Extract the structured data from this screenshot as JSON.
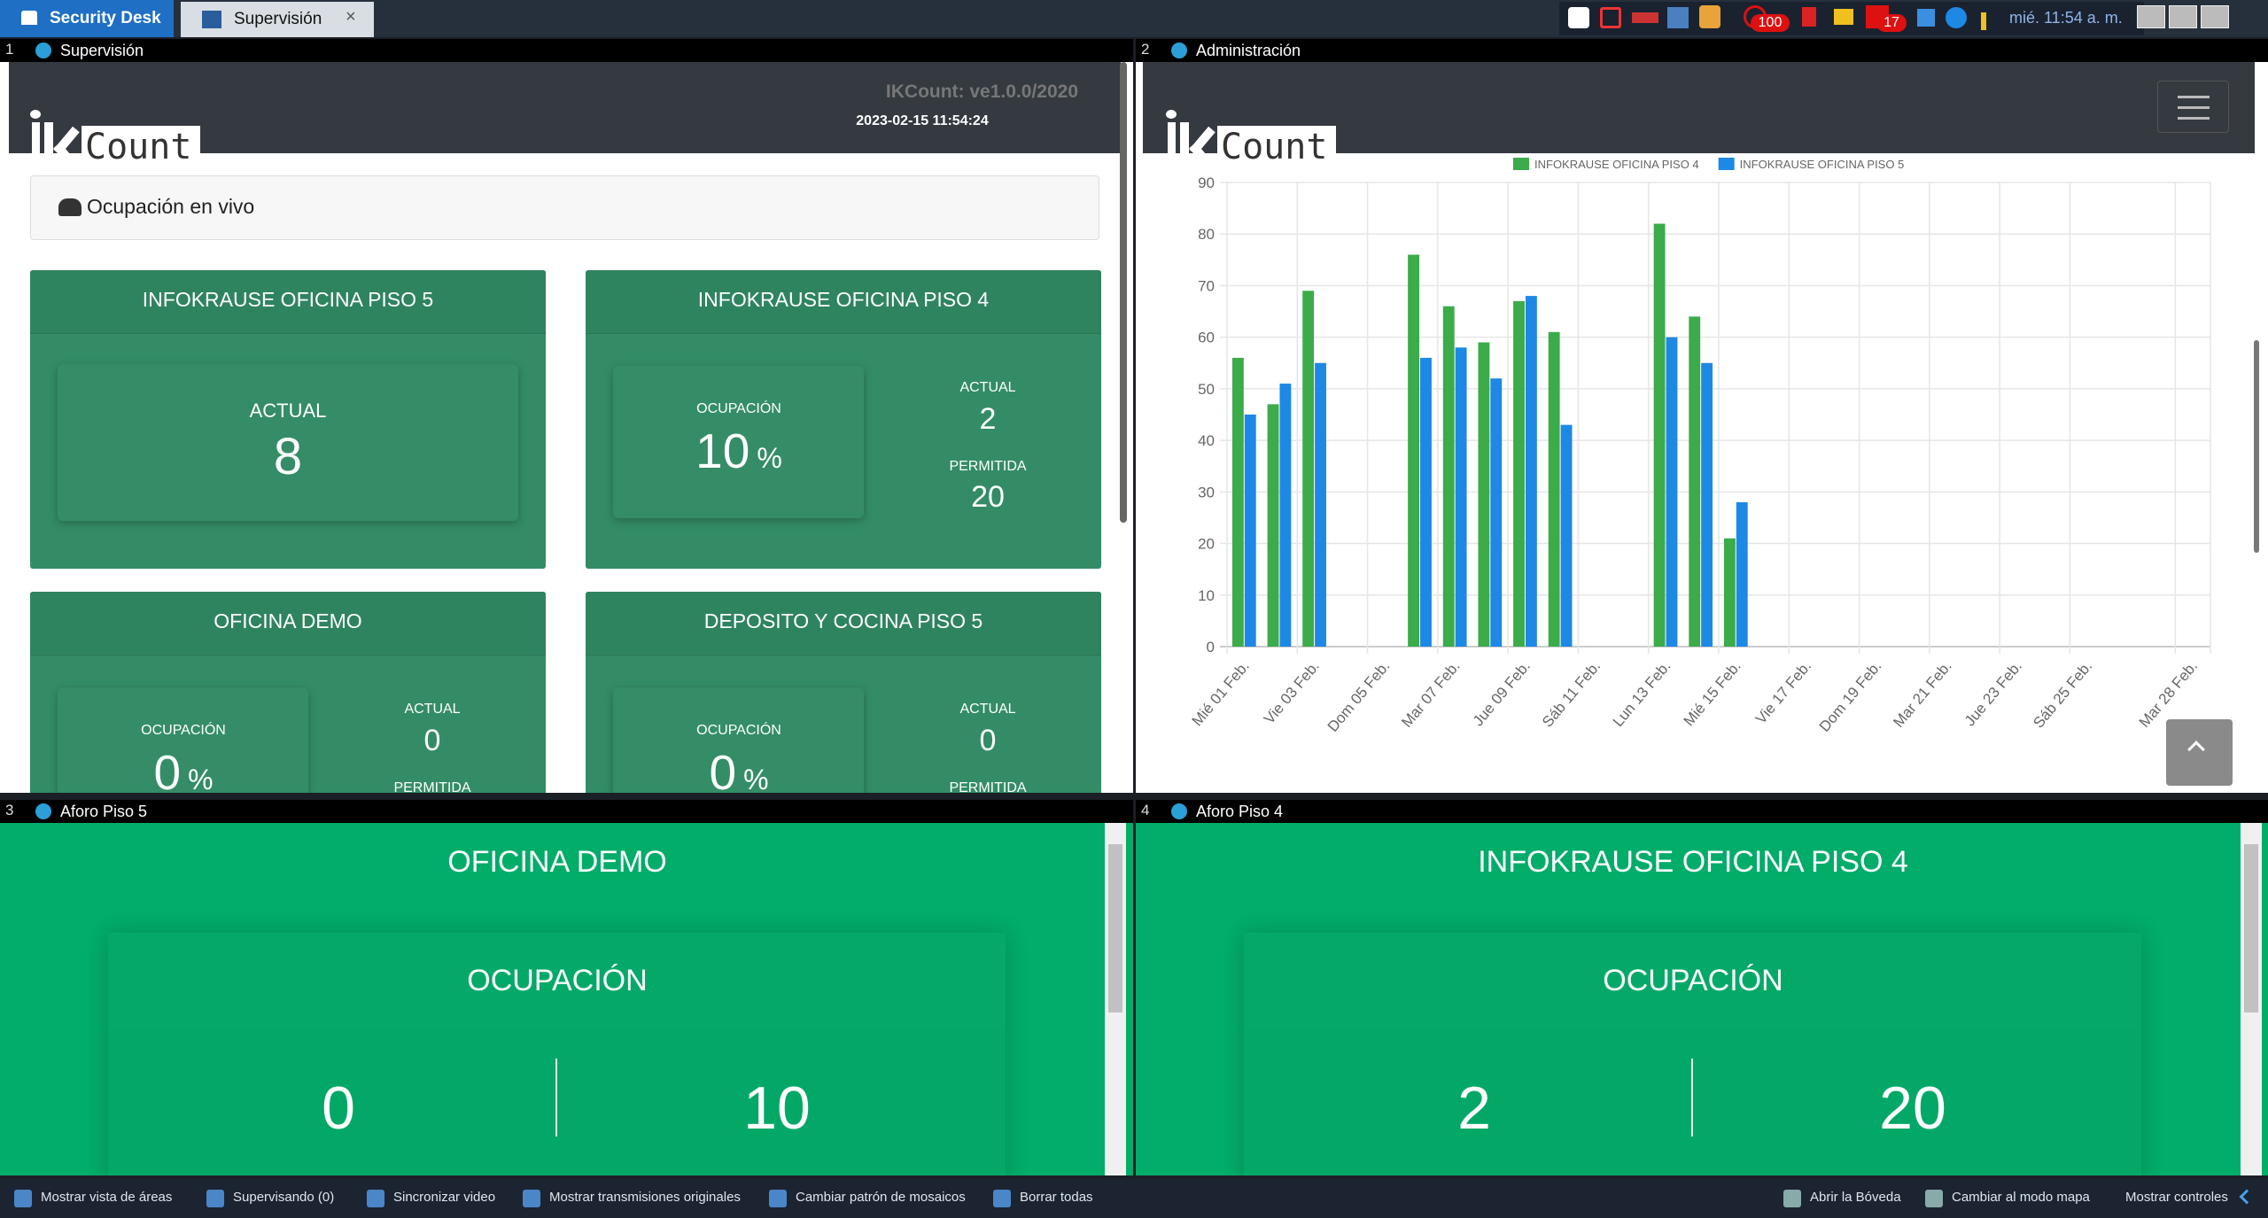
{
  "taskbar": {
    "app_tab": "Security Desk",
    "tab": "Supervisión",
    "badges": [
      "100",
      "17"
    ],
    "clock": "mié. 11:54 a. m."
  },
  "tiles": [
    {
      "number": "1",
      "title": "Supervisión"
    },
    {
      "number": "2",
      "title": "Administración"
    },
    {
      "number": "3",
      "title": "Aforo Piso 5"
    },
    {
      "number": "4",
      "title": "Aforo Piso 4"
    }
  ],
  "supervision": {
    "logo": "Count",
    "version": "IKCount: ve1.0.0/2020",
    "datetime": "2023-02-15 11:54:24",
    "section": "Ocupación en vivo",
    "cards": [
      {
        "name": "INFOKRAUSE OFICINA PISO 5",
        "actual_label": "ACTUAL",
        "actual": "8"
      },
      {
        "name": "INFOKRAUSE OFICINA PISO 4",
        "occupancy_label": "OCUPACIÓN",
        "occupancy": "10",
        "unit": "%",
        "actual_label": "ACTUAL",
        "actual": "2",
        "allowed_label": "PERMITIDA",
        "allowed": "20"
      },
      {
        "name": "OFICINA DEMO",
        "occupancy_label": "OCUPACIÓN",
        "occupancy": "0",
        "unit": "%",
        "actual_label": "ACTUAL",
        "actual": "0",
        "allowed_label": "PERMITIDA"
      },
      {
        "name": "DEPOSITO Y COCINA PISO 5",
        "occupancy_label": "OCUPACIÓN",
        "occupancy": "0",
        "unit": "%",
        "actual_label": "ACTUAL",
        "actual": "0",
        "allowed_label": "PERMITIDA"
      }
    ]
  },
  "administration": {
    "logo": "Count",
    "chart": {
      "type": "bar",
      "categories": [
        "Mié 01 Feb.",
        null,
        "Vie 03 Feb.",
        null,
        "Dom 05 Feb.",
        null,
        "Mar 07 Feb.",
        null,
        "Jue 09 Feb.",
        null,
        "Sáb 11 Feb.",
        null,
        "Lun 13 Feb.",
        null,
        "Mié 15 Feb.",
        null,
        "Vie 17 Feb.",
        null,
        "Dom 19 Feb.",
        null,
        "Mar 21 Feb.",
        null,
        "Jue 23 Feb.",
        null,
        "Sáb 25 Feb.",
        null,
        null,
        "Mar 28 Feb."
      ],
      "series": [
        {
          "name": "INFOKRAUSE OFICINA PISO 4",
          "color": "#3cab4a",
          "values": [
            56,
            47,
            69,
            null,
            null,
            76,
            66,
            59,
            67,
            61,
            null,
            null,
            82,
            64,
            21,
            null,
            null,
            null,
            null,
            null,
            null,
            null,
            null,
            null,
            null,
            null,
            null,
            null
          ]
        },
        {
          "name": "INFOKRAUSE OFICINA PISO 5",
          "color": "#1e88e5",
          "values": [
            45,
            51,
            55,
            null,
            null,
            56,
            58,
            52,
            68,
            43,
            null,
            null,
            60,
            55,
            28,
            null,
            null,
            null,
            null,
            null,
            null,
            null,
            null,
            null,
            null,
            null,
            null,
            null
          ]
        }
      ],
      "ylim": [
        0,
        90
      ],
      "yticks": [
        0,
        10,
        20,
        30,
        40,
        50,
        60,
        70,
        80,
        90
      ],
      "grid": true,
      "legend": "top"
    }
  },
  "aforo": [
    {
      "name": "OFICINA DEMO",
      "label": "OCUPACIÓN",
      "current": "0",
      "capacity": "10"
    },
    {
      "name": "INFOKRAUSE OFICINA PISO 4",
      "label": "OCUPACIÓN",
      "current": "2",
      "capacity": "20"
    }
  ],
  "bottom_bar": {
    "left": [
      "Mostrar vista de áreas",
      "Supervisando (0)",
      "Sincronizar video",
      "Mostrar transmisiones originales",
      "Cambiar patrón de mosaicos",
      "Borrar todas"
    ],
    "right": [
      "Abrir la Bóveda",
      "Cambiar al modo mapa",
      "Mostrar controles"
    ]
  }
}
